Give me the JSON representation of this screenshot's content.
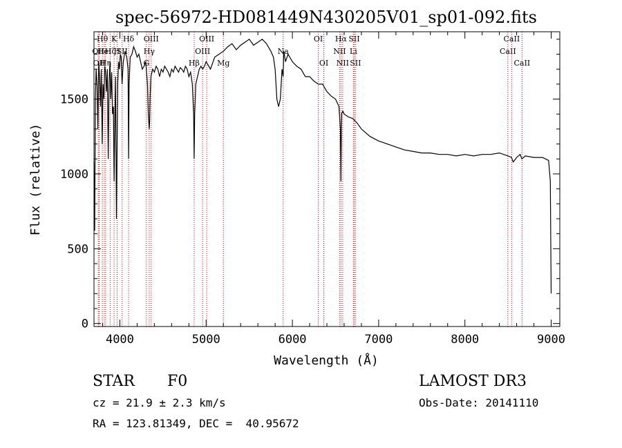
{
  "chart_data": {
    "type": "line",
    "title": "spec-56972-HD081449N430205V01_sp01-092.fits",
    "xlabel": "Wavelength (Å)",
    "ylabel": "Flux (relative)",
    "xlim": [
      3700,
      9100
    ],
    "ylim": [
      -20,
      1950
    ],
    "x_ticks": [
      4000,
      5000,
      6000,
      7000,
      8000,
      9000
    ],
    "y_ticks": [
      0,
      500,
      1000,
      1500
    ],
    "series": [
      {
        "x": [
          3700,
          3708,
          3716,
          3725,
          3735,
          3745,
          3755,
          3765,
          3775,
          3785,
          3795,
          3805,
          3815,
          3825,
          3835,
          3845,
          3855,
          3865,
          3875,
          3885,
          3895,
          3905,
          3915,
          3925,
          3933,
          3940,
          3950,
          3960,
          3968,
          3975,
          3985,
          3995,
          4005,
          4015,
          4025,
          4040,
          4060,
          4080,
          4095,
          4101,
          4107,
          4120,
          4140,
          4160,
          4180,
          4200,
          4220,
          4240,
          4260,
          4280,
          4300,
          4320,
          4330,
          4340,
          4345,
          4350,
          4360,
          4380,
          4400,
          4420,
          4440,
          4460,
          4480,
          4500,
          4520,
          4540,
          4560,
          4580,
          4600,
          4620,
          4640,
          4660,
          4680,
          4700,
          4720,
          4740,
          4760,
          4780,
          4800,
          4820,
          4840,
          4855,
          4861,
          4867,
          4880,
          4900,
          4920,
          4940,
          4960,
          4980,
          5000,
          5050,
          5100,
          5150,
          5200,
          5250,
          5300,
          5350,
          5400,
          5450,
          5500,
          5550,
          5600,
          5650,
          5700,
          5750,
          5780,
          5800,
          5820,
          5840,
          5860,
          5880,
          5893,
          5900,
          5920,
          5950,
          6000,
          6050,
          6100,
          6150,
          6200,
          6250,
          6300,
          6350,
          6400,
          6450,
          6500,
          6540,
          6556,
          6563,
          6570,
          6585,
          6600,
          6650,
          6700,
          6750,
          6800,
          6900,
          7000,
          7100,
          7200,
          7300,
          7400,
          7500,
          7600,
          7700,
          7800,
          7900,
          8000,
          8100,
          8200,
          8300,
          8400,
          8500,
          8540,
          8560,
          8600,
          8640,
          8660,
          8700,
          8800,
          8900,
          8970,
          8990,
          9000
        ],
        "y": [
          1080,
          620,
          1500,
          1700,
          1600,
          1300,
          1750,
          1650,
          1450,
          1700,
          1200,
          1600,
          1500,
          1720,
          1680,
          1550,
          1700,
          1100,
          1600,
          1750,
          1500,
          1680,
          1400,
          1450,
          950,
          1300,
          1650,
          700,
          1200,
          1600,
          1750,
          1700,
          1800,
          1780,
          1600,
          1750,
          1820,
          1780,
          1700,
          1100,
          1600,
          1780,
          1800,
          1850,
          1820,
          1780,
          1800,
          1750,
          1700,
          1720,
          1750,
          1600,
          1400,
          1300,
          1350,
          1500,
          1650,
          1700,
          1680,
          1720,
          1700,
          1650,
          1700,
          1680,
          1720,
          1700,
          1680,
          1650,
          1700,
          1680,
          1720,
          1700,
          1680,
          1710,
          1700,
          1680,
          1720,
          1700,
          1650,
          1680,
          1600,
          1400,
          1100,
          1400,
          1600,
          1650,
          1700,
          1720,
          1700,
          1720,
          1750,
          1700,
          1780,
          1800,
          1820,
          1850,
          1870,
          1830,
          1860,
          1880,
          1900,
          1860,
          1880,
          1900,
          1870,
          1820,
          1780,
          1700,
          1500,
          1450,
          1500,
          1700,
          1650,
          1820,
          1750,
          1800,
          1750,
          1720,
          1700,
          1650,
          1650,
          1620,
          1600,
          1600,
          1550,
          1520,
          1500,
          1450,
          1300,
          950,
          1400,
          1420,
          1400,
          1380,
          1370,
          1340,
          1300,
          1250,
          1220,
          1200,
          1180,
          1160,
          1150,
          1140,
          1140,
          1130,
          1130,
          1120,
          1130,
          1120,
          1130,
          1130,
          1140,
          1120,
          1110,
          1080,
          1110,
          1130,
          1100,
          1120,
          1110,
          1110,
          1090,
          950,
          200
        ]
      }
    ],
    "spectral_lines": [
      {
        "x": 3750,
        "row": 1,
        "label": "OII"
      },
      {
        "x": 3760,
        "row": 2,
        "label": "OII"
      },
      {
        "x": 3797,
        "row": 0,
        "label": "Hθ"
      },
      {
        "x": 3820,
        "row": 1,
        "label": "HeI"
      },
      {
        "x": 3835,
        "row": 2,
        "label": "Hη"
      },
      {
        "x": 3889,
        "row": 1,
        "label": "Hζ"
      },
      {
        "x": 3933,
        "row": 0,
        "label": "K"
      },
      {
        "x": 3968,
        "row": 1,
        "label": "H"
      },
      {
        "x": 4026,
        "row": 1,
        "label": "SII"
      },
      {
        "x": 4101,
        "row": 0,
        "label": "Hδ"
      },
      {
        "x": 4307,
        "row": 2,
        "label": "G"
      },
      {
        "x": 4340,
        "row": 1,
        "label": "Hγ"
      },
      {
        "x": 4363,
        "row": 0,
        "label": "OIII"
      },
      {
        "x": 4861,
        "row": 2,
        "label": "Hβ"
      },
      {
        "x": 4959,
        "row": 1,
        "label": "OIII"
      },
      {
        "x": 5007,
        "row": 0,
        "label": "OIII"
      },
      {
        "x": 5200,
        "row": 2,
        "label": "Mg"
      },
      {
        "x": 5893,
        "row": 1,
        "label": "Na"
      },
      {
        "x": 6300,
        "row": 0,
        "label": "OI"
      },
      {
        "x": 6364,
        "row": 2,
        "label": "OI"
      },
      {
        "x": 6548,
        "row": 1,
        "label": "NII"
      },
      {
        "x": 6563,
        "row": 0,
        "label": "Hα"
      },
      {
        "x": 6583,
        "row": 2,
        "label": "NII"
      },
      {
        "x": 6707,
        "row": 1,
        "label": "Li"
      },
      {
        "x": 6716,
        "row": 0,
        "label": "SII"
      },
      {
        "x": 6731,
        "row": 2,
        "label": "SII"
      },
      {
        "x": 8498,
        "row": 1,
        "label": "CaII"
      },
      {
        "x": 8542,
        "row": 0,
        "label": "CaII"
      },
      {
        "x": 8662,
        "row": 2,
        "label": "CaII"
      }
    ]
  },
  "info": {
    "object_class": "STAR",
    "subclass": "F0",
    "survey": "LAMOST DR3",
    "redshift": "cz = 21.9 ± 2.3 km/s",
    "obs_date": "Obs-Date: 20141110",
    "coords": "RA = 123.81349, DEC =  40.95672"
  }
}
